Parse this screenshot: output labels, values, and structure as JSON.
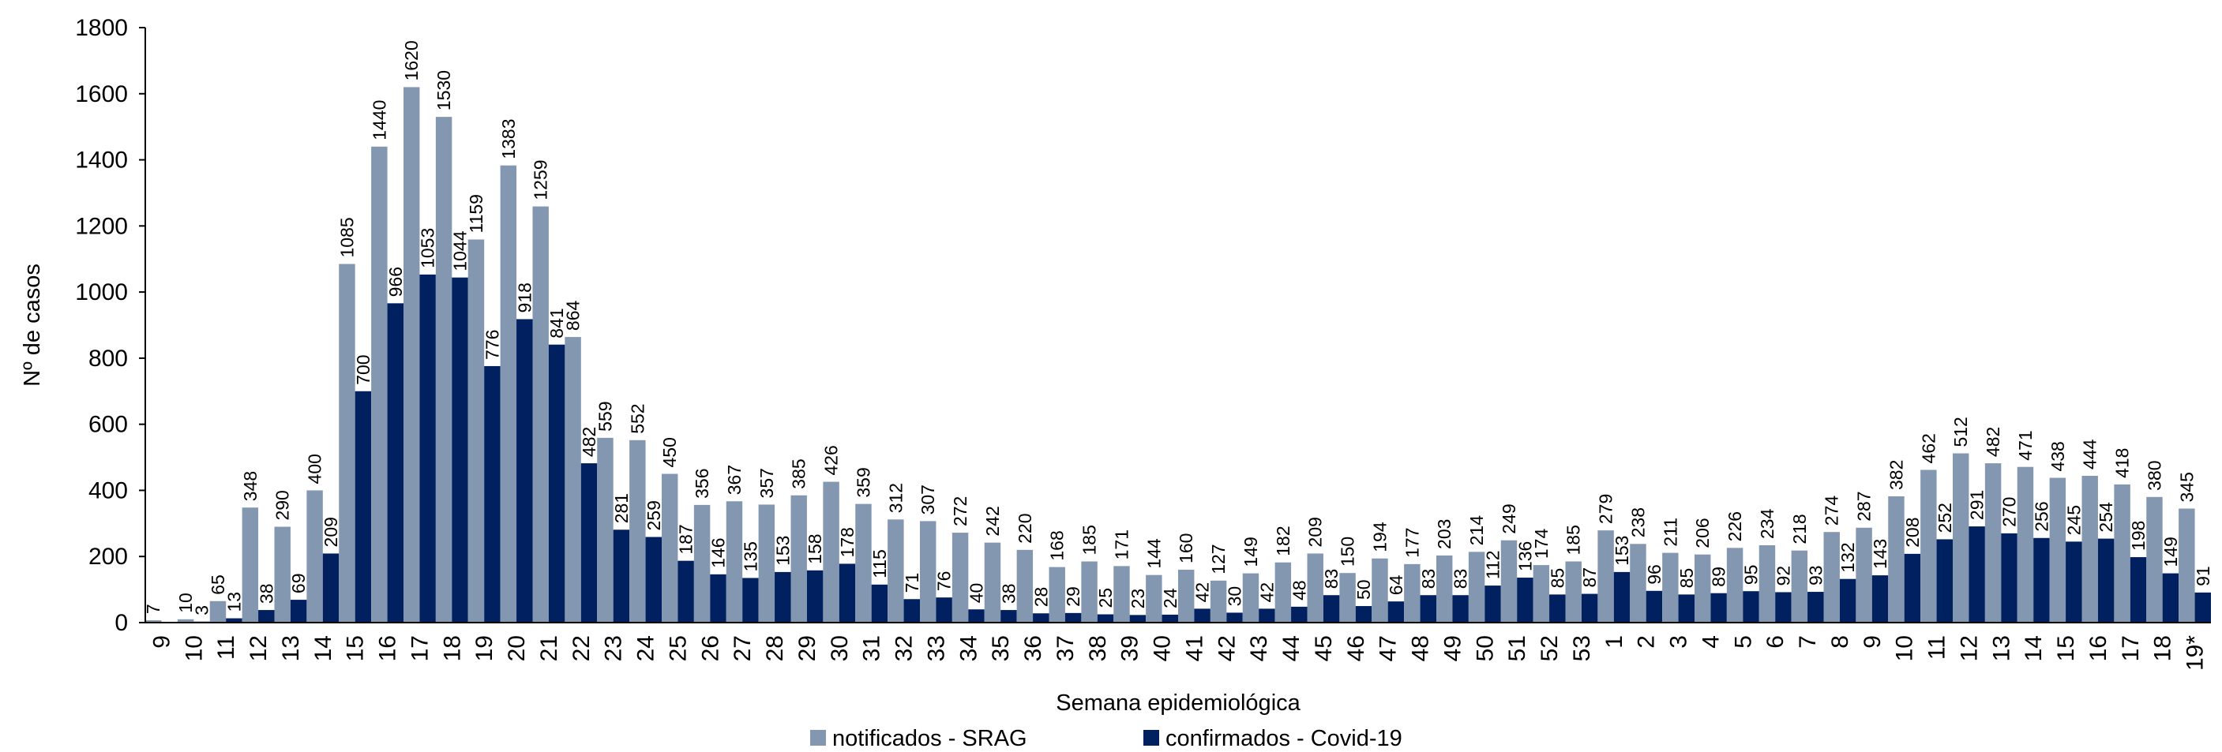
{
  "colors": {
    "notificados": "#8497b0",
    "confirmados": "#002060",
    "axis": "#000000"
  },
  "chart_data": {
    "type": "bar",
    "title": "",
    "xlabel": "Semana epidemiológica",
    "ylabel": "Nº de casos",
    "ylim": [
      0,
      1800
    ],
    "yticks": [
      0,
      200,
      400,
      600,
      800,
      1000,
      1200,
      1400,
      1600,
      1800
    ],
    "grid": false,
    "legend_position": "bottom",
    "categories": [
      "9",
      "10",
      "11",
      "12",
      "13",
      "14",
      "15",
      "16",
      "17",
      "18",
      "19",
      "20",
      "21",
      "22",
      "23",
      "24",
      "25",
      "26",
      "27",
      "28",
      "29",
      "30",
      "31",
      "32",
      "33",
      "34",
      "35",
      "36",
      "37",
      "38",
      "39",
      "40",
      "41",
      "42",
      "43",
      "44",
      "45",
      "46",
      "47",
      "48",
      "49",
      "50",
      "51",
      "52",
      "53",
      "1",
      "2",
      "3",
      "4",
      "5",
      "6",
      "7",
      "8",
      "9",
      "10",
      "11",
      "12",
      "13",
      "14",
      "15",
      "16",
      "17",
      "18",
      "19*"
    ],
    "series": [
      {
        "name": "notificados - SRAG",
        "values": [
          7,
          10,
          65,
          348,
          290,
          400,
          1085,
          1440,
          1620,
          1530,
          1159,
          1383,
          1259,
          864,
          559,
          552,
          450,
          356,
          367,
          357,
          385,
          426,
          359,
          312,
          307,
          272,
          242,
          220,
          168,
          185,
          171,
          144,
          160,
          127,
          149,
          182,
          209,
          150,
          194,
          177,
          203,
          214,
          249,
          174,
          185,
          279,
          238,
          211,
          206,
          226,
          234,
          218,
          274,
          287,
          382,
          462,
          512,
          482,
          471,
          438,
          444,
          418,
          380,
          345
        ]
      },
      {
        "name": "confirmados - Covid-19",
        "values": [
          null,
          3,
          13,
          38,
          69,
          209,
          700,
          966,
          1053,
          1044,
          776,
          918,
          841,
          482,
          281,
          259,
          187,
          146,
          135,
          153,
          158,
          178,
          115,
          71,
          76,
          40,
          38,
          28,
          29,
          25,
          23,
          24,
          42,
          30,
          42,
          48,
          83,
          50,
          64,
          83,
          83,
          112,
          136,
          85,
          87,
          153,
          96,
          85,
          89,
          95,
          92,
          93,
          132,
          143,
          208,
          252,
          291,
          270,
          256,
          245,
          254,
          198,
          149,
          91
        ]
      }
    ]
  }
}
